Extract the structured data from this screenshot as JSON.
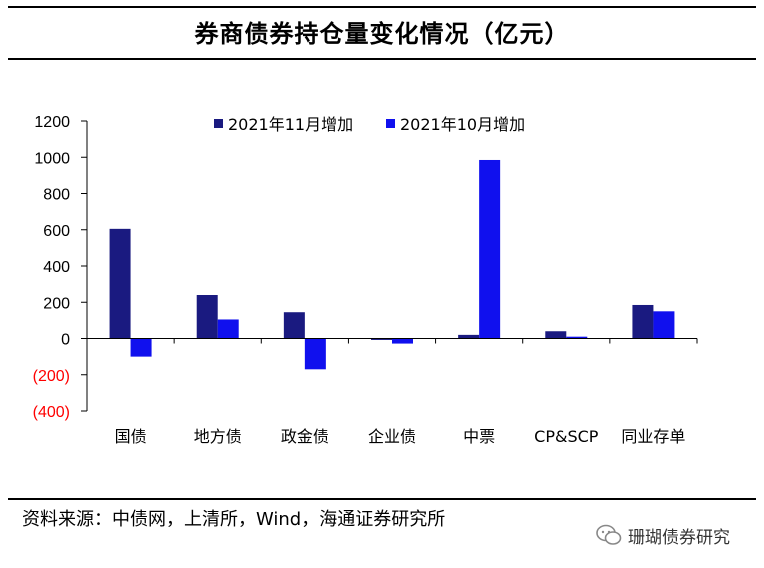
{
  "header": {
    "title": "券商债券持仓量变化情况（亿元）"
  },
  "footer": {
    "source": "资料来源：中债网，上清所，Wind，海通证券研究所",
    "watermark": "珊瑚债券研究"
  },
  "colors": {
    "series_nov": "#1a1a80",
    "series_oct": "#1010ee",
    "negative_tick": "#ff0000",
    "axis": "#000000"
  },
  "chart_data": {
    "type": "bar",
    "title": "券商债券持仓量变化情况（亿元）",
    "xlabel": "",
    "ylabel": "",
    "ylim": [
      -400,
      1200
    ],
    "yticks": [
      1200,
      1000,
      800,
      600,
      400,
      200,
      0,
      -200,
      -400
    ],
    "ytick_labels": [
      "1200",
      "1000",
      "800",
      "600",
      "400",
      "200",
      "0",
      "(200)",
      "(400)"
    ],
    "legend_position": "top-center",
    "categories": [
      "国债",
      "地方债",
      "政金债",
      "企业债",
      "中票",
      "CP&SCP",
      "同业存单"
    ],
    "series": [
      {
        "name": "2021年11月增加",
        "values": [
          605,
          240,
          145,
          -8,
          20,
          40,
          185
        ]
      },
      {
        "name": "2021年10月增加",
        "values": [
          -100,
          105,
          -170,
          -28,
          985,
          10,
          150
        ]
      }
    ]
  }
}
